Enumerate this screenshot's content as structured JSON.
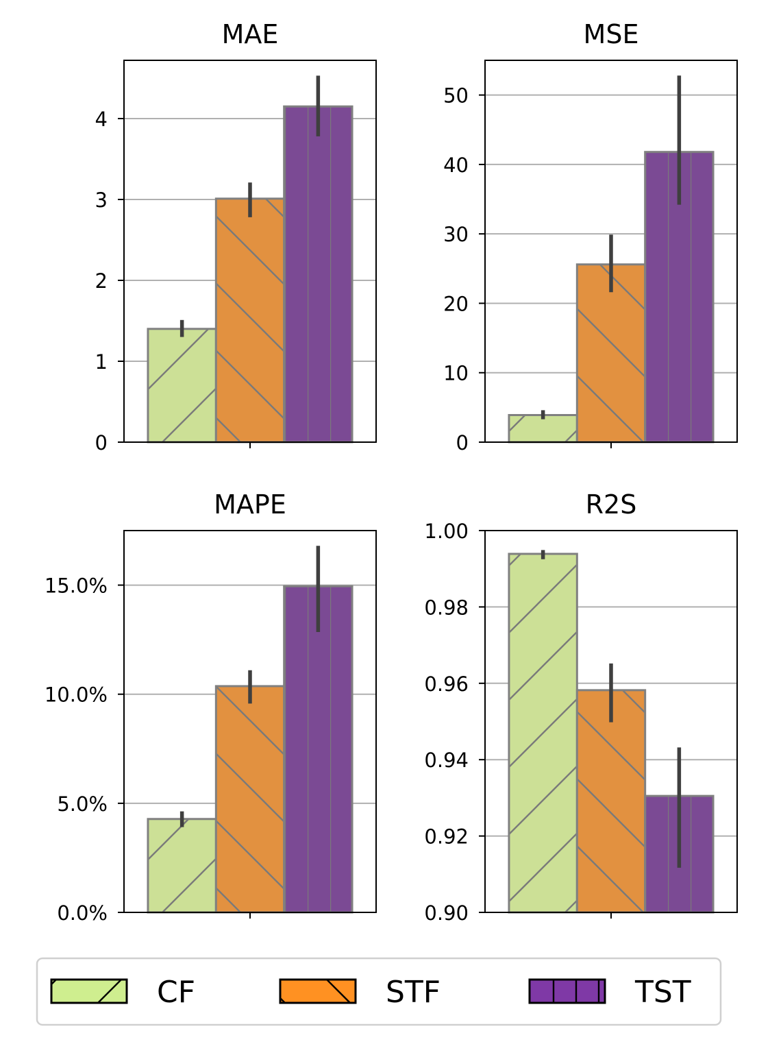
{
  "chart_data": [
    {
      "type": "bar",
      "title": "MAE",
      "xlabel": "",
      "ylabel": "",
      "ylim": [
        0,
        4.72
      ],
      "yticks": [
        0,
        1,
        2,
        3,
        4
      ],
      "ytick_labels": [
        "0",
        "1",
        "2",
        "3",
        "4"
      ],
      "grid": "horizontal",
      "categories": [
        ""
      ],
      "series": [
        {
          "name": "CF",
          "values": [
            1.4
          ],
          "err_low": [
            1.3
          ],
          "err_high": [
            1.51
          ]
        },
        {
          "name": "STF",
          "values": [
            3.01
          ],
          "err_low": [
            2.78
          ],
          "err_high": [
            3.21
          ]
        },
        {
          "name": "TST",
          "values": [
            4.15
          ],
          "err_low": [
            3.78
          ],
          "err_high": [
            4.53
          ]
        }
      ]
    },
    {
      "type": "bar",
      "title": "MSE",
      "xlabel": "",
      "ylabel": "",
      "ylim": [
        0,
        55
      ],
      "yticks": [
        0,
        10,
        20,
        30,
        40,
        50
      ],
      "ytick_labels": [
        "0",
        "10",
        "20",
        "30",
        "40",
        "50"
      ],
      "grid": "horizontal",
      "categories": [
        ""
      ],
      "series": [
        {
          "name": "CF",
          "values": [
            3.9
          ],
          "err_low": [
            3.3
          ],
          "err_high": [
            4.6
          ]
        },
        {
          "name": "STF",
          "values": [
            25.6
          ],
          "err_low": [
            21.6
          ],
          "err_high": [
            29.9
          ]
        },
        {
          "name": "TST",
          "values": [
            41.8
          ],
          "err_low": [
            34.2
          ],
          "err_high": [
            52.8
          ]
        }
      ]
    },
    {
      "type": "bar",
      "title": "MAPE",
      "xlabel": "",
      "ylabel": "",
      "ylim": [
        0,
        0.175
      ],
      "yticks": [
        0,
        0.05,
        0.1,
        0.15
      ],
      "ytick_labels": [
        "0.0%",
        "5.0%",
        "10.0%",
        "15.0%"
      ],
      "grid": "horizontal",
      "categories": [
        ""
      ],
      "series": [
        {
          "name": "CF",
          "values": [
            0.0428
          ],
          "err_low": [
            0.0391
          ],
          "err_high": [
            0.0463
          ]
        },
        {
          "name": "STF",
          "values": [
            0.1037
          ],
          "err_low": [
            0.0957
          ],
          "err_high": [
            0.111
          ]
        },
        {
          "name": "TST",
          "values": [
            0.1495
          ],
          "err_low": [
            0.1285
          ],
          "err_high": [
            0.168
          ]
        }
      ]
    },
    {
      "type": "bar",
      "title": "R2S",
      "xlabel": "",
      "ylabel": "",
      "ylim": [
        0.9,
        1.0
      ],
      "yticks": [
        0.9,
        0.92,
        0.94,
        0.96,
        0.98,
        1.0
      ],
      "ytick_labels": [
        "0.90",
        "0.92",
        "0.94",
        "0.96",
        "0.98",
        "1.00"
      ],
      "grid": "horizontal",
      "categories": [
        ""
      ],
      "series": [
        {
          "name": "CF",
          "values": [
            0.9939
          ],
          "err_low": [
            0.9925
          ],
          "err_high": [
            0.9949
          ]
        },
        {
          "name": "STF",
          "values": [
            0.9582
          ],
          "err_low": [
            0.9498
          ],
          "err_high": [
            0.9652
          ]
        },
        {
          "name": "TST",
          "values": [
            0.9305
          ],
          "err_low": [
            0.9117
          ],
          "err_high": [
            0.9432
          ]
        }
      ]
    }
  ],
  "legend": {
    "placement": "bottom-center",
    "entries": [
      {
        "label": "CF",
        "color": "#cfee8f",
        "hatch": "forward-diagonal"
      },
      {
        "label": "STF",
        "color": "#ff9122",
        "hatch": "back-diagonal"
      },
      {
        "label": "TST",
        "color": "#7f39a6",
        "hatch": "vertical"
      }
    ]
  },
  "colors": {
    "cf_fill": "#cce096",
    "stf_fill": "#e29140",
    "tst_fill": "#7b4a94",
    "bar_edge": "#808080",
    "error_bar": "#3f3f3f",
    "grid": "#b0b0b0",
    "axes": "#000000"
  }
}
